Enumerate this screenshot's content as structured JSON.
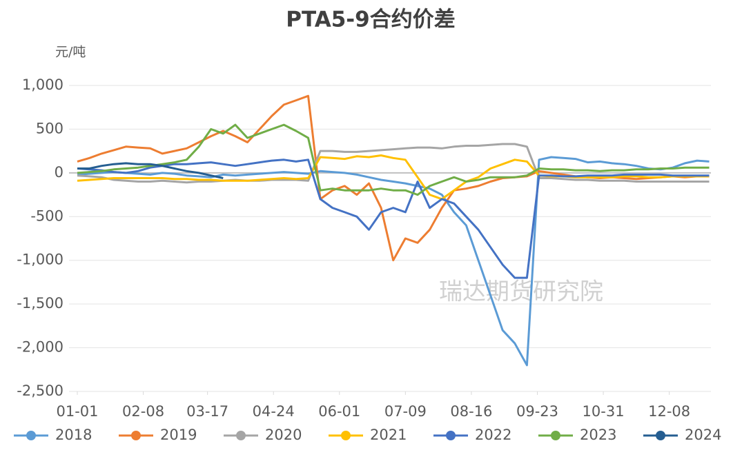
{
  "chart_data": {
    "type": "line",
    "title": "PTA5-9合约价差",
    "y_axis_label": "元/吨",
    "watermark": "瑞达期货研究院",
    "x": [
      0,
      7,
      14,
      21,
      28,
      35,
      42,
      49,
      56,
      63,
      70,
      77,
      84,
      91,
      98,
      105,
      112,
      119,
      126,
      133,
      140,
      147,
      154,
      161,
      168,
      175,
      182,
      189,
      196,
      203,
      210,
      217,
      224,
      231,
      238,
      245,
      252,
      259,
      266,
      273,
      280,
      287,
      294,
      301,
      308,
      315,
      322,
      329,
      336,
      343,
      350,
      357,
      364
    ],
    "xlim": [
      0,
      365
    ],
    "xticks": [
      {
        "value": 0,
        "label": "01-01"
      },
      {
        "value": 38,
        "label": "02-08"
      },
      {
        "value": 75,
        "label": "03-17"
      },
      {
        "value": 113,
        "label": "04-24"
      },
      {
        "value": 151,
        "label": "06-01"
      },
      {
        "value": 189,
        "label": "07-09"
      },
      {
        "value": 227,
        "label": "08-16"
      },
      {
        "value": 265,
        "label": "09-23"
      },
      {
        "value": 303,
        "label": "10-31"
      },
      {
        "value": 341,
        "label": "12-08"
      }
    ],
    "ylim": [
      -2500,
      1000
    ],
    "yticks": [
      {
        "value": 1000,
        "label": "1,000"
      },
      500,
      0,
      -500,
      {
        "value": -1000,
        "label": "-1,000"
      },
      {
        "value": -1500,
        "label": "-1,500"
      },
      {
        "value": -2000,
        "label": "-2,000"
      },
      {
        "value": -2500,
        "label": "-2,500"
      }
    ],
    "grid": true,
    "legend": "bottom",
    "series": [
      {
        "name": "2018",
        "color": "#5b9bd5",
        "values": [
          -20,
          -10,
          0,
          10,
          0,
          -10,
          -20,
          0,
          -10,
          -30,
          -40,
          -50,
          -20,
          -30,
          -20,
          -10,
          0,
          10,
          0,
          -10,
          20,
          10,
          0,
          -20,
          -50,
          -80,
          -100,
          -120,
          -150,
          -180,
          -250,
          -450,
          -600,
          -1000,
          -1400,
          -1800,
          -1950,
          -2200,
          150,
          180,
          170,
          160,
          120,
          130,
          110,
          100,
          80,
          50,
          40,
          60,
          110,
          140,
          130
        ]
      },
      {
        "name": "2019",
        "color": "#ed7d31",
        "values": [
          130,
          170,
          220,
          260,
          300,
          290,
          280,
          220,
          250,
          280,
          350,
          420,
          480,
          420,
          350,
          500,
          650,
          780,
          830,
          880,
          -300,
          -200,
          -150,
          -250,
          -120,
          -400,
          -1000,
          -750,
          -800,
          -650,
          -400,
          -200,
          -180,
          -150,
          -100,
          -60,
          -50,
          -40,
          20,
          0,
          -20,
          -40,
          -50,
          -60,
          -50,
          -60,
          -70,
          -60,
          -50,
          -40,
          -50,
          -40,
          -40
        ]
      },
      {
        "name": "2020",
        "color": "#a5a5a5",
        "values": [
          -30,
          -40,
          -50,
          -80,
          -90,
          -100,
          -100,
          -90,
          -100,
          -110,
          -100,
          -100,
          -90,
          -80,
          -90,
          -90,
          -80,
          -80,
          -80,
          -90,
          250,
          250,
          240,
          240,
          250,
          260,
          270,
          280,
          290,
          290,
          280,
          300,
          310,
          310,
          320,
          330,
          330,
          300,
          -60,
          -60,
          -70,
          -80,
          -80,
          -90,
          -90,
          -90,
          -100,
          -100,
          -100,
          -100,
          -100,
          -100,
          -100
        ]
      },
      {
        "name": "2021",
        "color": "#ffc000",
        "values": [
          -90,
          -80,
          -70,
          -60,
          -60,
          -60,
          -60,
          -60,
          -70,
          -70,
          -80,
          -80,
          -90,
          -90,
          -90,
          -80,
          -70,
          -60,
          -70,
          -60,
          180,
          170,
          160,
          190,
          180,
          200,
          170,
          150,
          -50,
          -250,
          -300,
          -200,
          -100,
          -50,
          50,
          100,
          150,
          130,
          -30,
          -40,
          -40,
          -50,
          -50,
          -50,
          -50,
          -40,
          -40,
          -50,
          -50,
          -40,
          -40,
          -40,
          -40
        ]
      },
      {
        "name": "2022",
        "color": "#4472c4",
        "values": [
          50,
          40,
          30,
          10,
          0,
          20,
          60,
          80,
          100,
          100,
          110,
          120,
          100,
          80,
          100,
          120,
          140,
          150,
          130,
          150,
          -300,
          -400,
          -450,
          -500,
          -650,
          -450,
          -400,
          -450,
          -100,
          -400,
          -300,
          -350,
          -500,
          -650,
          -850,
          -1050,
          -1200,
          -1200,
          -30,
          -30,
          -40,
          -40,
          -30,
          -30,
          -30,
          -20,
          -20,
          -20,
          -20,
          -30,
          -30,
          -30,
          -30
        ]
      },
      {
        "name": "2023",
        "color": "#70ad47",
        "values": [
          0,
          10,
          20,
          40,
          50,
          60,
          80,
          100,
          120,
          150,
          300,
          500,
          450,
          550,
          400,
          450,
          500,
          550,
          480,
          400,
          -200,
          -180,
          -200,
          -200,
          -200,
          -180,
          -200,
          -200,
          -250,
          -150,
          -100,
          -50,
          -100,
          -80,
          -50,
          -50,
          -50,
          -30,
          50,
          40,
          40,
          30,
          30,
          20,
          30,
          30,
          40,
          40,
          50,
          50,
          60,
          60,
          60
        ]
      },
      {
        "name": "2024",
        "color": "#255e91",
        "values": [
          50,
          50,
          80,
          100,
          110,
          100,
          100,
          80,
          50,
          20,
          0,
          -30,
          -60,
          null,
          null,
          null,
          null,
          null,
          null,
          null,
          null,
          null,
          null,
          null,
          null,
          null,
          null,
          null,
          null,
          null,
          null,
          null,
          null,
          null,
          null,
          null,
          null,
          null,
          null,
          null,
          null,
          null,
          null,
          null,
          null,
          null,
          null,
          null,
          null,
          null,
          null,
          null,
          null
        ]
      }
    ]
  }
}
